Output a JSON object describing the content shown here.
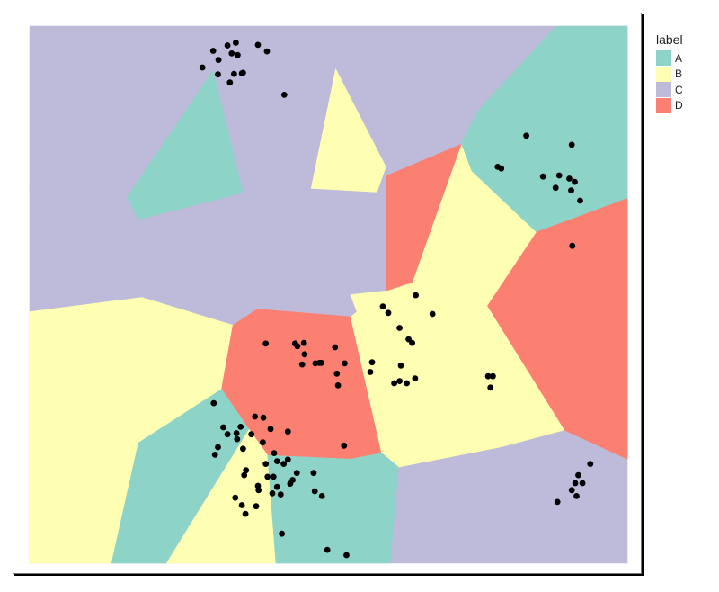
{
  "chart_data": {
    "type": "voronoi-scatter",
    "title": "",
    "xlabel": "",
    "ylabel": "",
    "legend": {
      "title": "label",
      "placement": "right",
      "entries": [
        {
          "label": "A",
          "color": "#8DD3C7"
        },
        {
          "label": "B",
          "color": "#FFFFB3"
        },
        {
          "label": "C",
          "color": "#BEBADA"
        },
        {
          "label": "D",
          "color": "#FB8072"
        }
      ]
    },
    "regions": [
      {
        "label": "C",
        "polygon": [
          [
            0,
            0
          ],
          [
            1,
            0
          ],
          [
            1,
            0.3
          ],
          [
            0,
            0.3
          ]
        ]
      },
      {
        "label": "C",
        "polygon": [
          [
            0,
            0.3
          ],
          [
            1,
            0.3
          ],
          [
            1,
            1
          ],
          [
            0,
            1
          ]
        ]
      },
      {
        "label": "A",
        "polygon": [
          [
            0.881,
            0
          ],
          [
            1,
            0
          ],
          [
            1,
            0.321
          ],
          [
            0.847,
            0.384
          ],
          [
            0.739,
            0.27
          ],
          [
            0.722,
            0.22
          ],
          [
            0.75,
            0.158
          ]
        ]
      },
      {
        "label": "D",
        "polygon": [
          [
            0.847,
            0.384
          ],
          [
            1,
            0.321
          ],
          [
            1,
            0.806
          ],
          [
            0.894,
            0.752
          ],
          [
            0.765,
            0.521
          ]
        ]
      },
      {
        "label": "B",
        "polygon": [
          [
            0.722,
            0.22
          ],
          [
            0.739,
            0.27
          ],
          [
            0.847,
            0.384
          ],
          [
            0.765,
            0.521
          ],
          [
            0.894,
            0.752
          ],
          [
            0.79,
            0.783
          ],
          [
            0.617,
            0.821
          ],
          [
            0.589,
            0.795
          ],
          [
            0.555,
            0.555
          ],
          [
            0.537,
            0.5
          ],
          [
            0.596,
            0.493
          ],
          [
            0.64,
            0.477
          ]
        ]
      },
      {
        "label": "D",
        "polygon": [
          [
            0.596,
            0.279
          ],
          [
            0.722,
            0.22
          ],
          [
            0.64,
            0.477
          ],
          [
            0.596,
            0.493
          ]
        ]
      },
      {
        "label": "B",
        "polygon": [
          [
            0.512,
            0.08
          ],
          [
            0.596,
            0.262
          ],
          [
            0.581,
            0.309
          ],
          [
            0.471,
            0.302
          ]
        ]
      },
      {
        "label": "A",
        "polygon": [
          [
            0.307,
            0.082
          ],
          [
            0.357,
            0.31
          ],
          [
            0.182,
            0.36
          ],
          [
            0.163,
            0.319
          ]
        ]
      },
      {
        "label": "B",
        "polygon": [
          [
            0,
            0.532
          ],
          [
            0.188,
            0.505
          ],
          [
            0.34,
            0.557
          ],
          [
            0.321,
            0.676
          ],
          [
            0.182,
            0.776
          ],
          [
            0.137,
            1
          ],
          [
            0,
            1
          ]
        ]
      },
      {
        "label": "D",
        "polygon": [
          [
            0.34,
            0.557
          ],
          [
            0.381,
            0.527
          ],
          [
            0.537,
            0.541
          ],
          [
            0.555,
            0.555
          ],
          [
            0.589,
            0.795
          ],
          [
            0.537,
            0.806
          ],
          [
            0.398,
            0.799
          ],
          [
            0.367,
            0.751
          ],
          [
            0.321,
            0.676
          ]
        ]
      },
      {
        "label": "B",
        "polygon": [
          [
            0.537,
            0.541
          ],
          [
            0.596,
            0.493
          ],
          [
            0.765,
            0.521
          ],
          [
            0.894,
            0.752
          ],
          [
            0.79,
            0.783
          ],
          [
            0.617,
            0.821
          ],
          [
            0.589,
            0.795
          ]
        ]
      },
      {
        "label": "A",
        "polygon": [
          [
            0.182,
            0.776
          ],
          [
            0.321,
            0.676
          ],
          [
            0.367,
            0.751
          ],
          [
            0.229,
            1
          ],
          [
            0.137,
            1
          ]
        ]
      },
      {
        "label": "B",
        "polygon": [
          [
            0.229,
            1
          ],
          [
            0.367,
            0.751
          ],
          [
            0.398,
            0.799
          ],
          [
            0.412,
            1
          ]
        ]
      },
      {
        "label": "A",
        "polygon": [
          [
            0.398,
            0.799
          ],
          [
            0.537,
            0.806
          ],
          [
            0.589,
            0.795
          ],
          [
            0.617,
            0.821
          ],
          [
            0.603,
            1
          ],
          [
            0.412,
            1
          ]
        ]
      }
    ],
    "points": [
      [
        0.345,
        0.031
      ],
      [
        0.331,
        0.036
      ],
      [
        0.338,
        0.051
      ],
      [
        0.382,
        0.035
      ],
      [
        0.307,
        0.046
      ],
      [
        0.348,
        0.054
      ],
      [
        0.316,
        0.063
      ],
      [
        0.397,
        0.047
      ],
      [
        0.289,
        0.077
      ],
      [
        0.355,
        0.088
      ],
      [
        0.342,
        0.089
      ],
      [
        0.357,
        0.087
      ],
      [
        0.315,
        0.09
      ],
      [
        0.335,
        0.105
      ],
      [
        0.426,
        0.128
      ],
      [
        0.831,
        0.204
      ],
      [
        0.907,
        0.221
      ],
      [
        0.783,
        0.262
      ],
      [
        0.789,
        0.265
      ],
      [
        0.886,
        0.278
      ],
      [
        0.859,
        0.28
      ],
      [
        0.903,
        0.284
      ],
      [
        0.912,
        0.29
      ],
      [
        0.88,
        0.301
      ],
      [
        0.906,
        0.306
      ],
      [
        0.921,
        0.325
      ],
      [
        0.908,
        0.409
      ],
      [
        0.646,
        0.501
      ],
      [
        0.591,
        0.522
      ],
      [
        0.6,
        0.534
      ],
      [
        0.674,
        0.536
      ],
      [
        0.619,
        0.562
      ],
      [
        0.634,
        0.583
      ],
      [
        0.64,
        0.59
      ],
      [
        0.459,
        0.59
      ],
      [
        0.395,
        0.591
      ],
      [
        0.444,
        0.591
      ],
      [
        0.448,
        0.596
      ],
      [
        0.511,
        0.598
      ],
      [
        0.46,
        0.611
      ],
      [
        0.485,
        0.627
      ],
      [
        0.478,
        0.628
      ],
      [
        0.488,
        0.627
      ],
      [
        0.527,
        0.628
      ],
      [
        0.456,
        0.63
      ],
      [
        0.573,
        0.626
      ],
      [
        0.621,
        0.632
      ],
      [
        0.57,
        0.644
      ],
      [
        0.775,
        0.652
      ],
      [
        0.645,
        0.656
      ],
      [
        0.61,
        0.665
      ],
      [
        0.631,
        0.665
      ],
      [
        0.619,
        0.661
      ],
      [
        0.767,
        0.652
      ],
      [
        0.514,
        0.647
      ],
      [
        0.516,
        0.669
      ],
      [
        0.771,
        0.673
      ],
      [
        0.308,
        0.702
      ],
      [
        0.377,
        0.727
      ],
      [
        0.353,
        0.746
      ],
      [
        0.391,
        0.729
      ],
      [
        0.324,
        0.747
      ],
      [
        0.403,
        0.75
      ],
      [
        0.331,
        0.76
      ],
      [
        0.371,
        0.76
      ],
      [
        0.432,
        0.755
      ],
      [
        0.346,
        0.758
      ],
      [
        0.39,
        0.775
      ],
      [
        0.347,
        0.769
      ],
      [
        0.315,
        0.784
      ],
      [
        0.357,
        0.787
      ],
      [
        0.526,
        0.781
      ],
      [
        0.31,
        0.798
      ],
      [
        0.409,
        0.795
      ],
      [
        0.414,
        0.81
      ],
      [
        0.395,
        0.815
      ],
      [
        0.432,
        0.807
      ],
      [
        0.425,
        0.815
      ],
      [
        0.447,
        0.832
      ],
      [
        0.475,
        0.832
      ],
      [
        0.44,
        0.845
      ],
      [
        0.362,
        0.827
      ],
      [
        0.359,
        0.836
      ],
      [
        0.398,
        0.839
      ],
      [
        0.408,
        0.839
      ],
      [
        0.918,
        0.836
      ],
      [
        0.913,
        0.851
      ],
      [
        0.414,
        0.858
      ],
      [
        0.382,
        0.856
      ],
      [
        0.383,
        0.864
      ],
      [
        0.436,
        0.852
      ],
      [
        0.42,
        0.872
      ],
      [
        0.406,
        0.87
      ],
      [
        0.477,
        0.866
      ],
      [
        0.344,
        0.878
      ],
      [
        0.379,
        0.894
      ],
      [
        0.355,
        0.892
      ],
      [
        0.361,
        0.908
      ],
      [
        0.489,
        0.875
      ],
      [
        0.915,
        0.875
      ],
      [
        0.925,
        0.851
      ],
      [
        0.938,
        0.815
      ],
      [
        0.907,
        0.864
      ],
      [
        0.883,
        0.886
      ],
      [
        0.422,
        0.945
      ],
      [
        0.498,
        0.975
      ],
      [
        0.53,
        0.985
      ]
    ]
  }
}
